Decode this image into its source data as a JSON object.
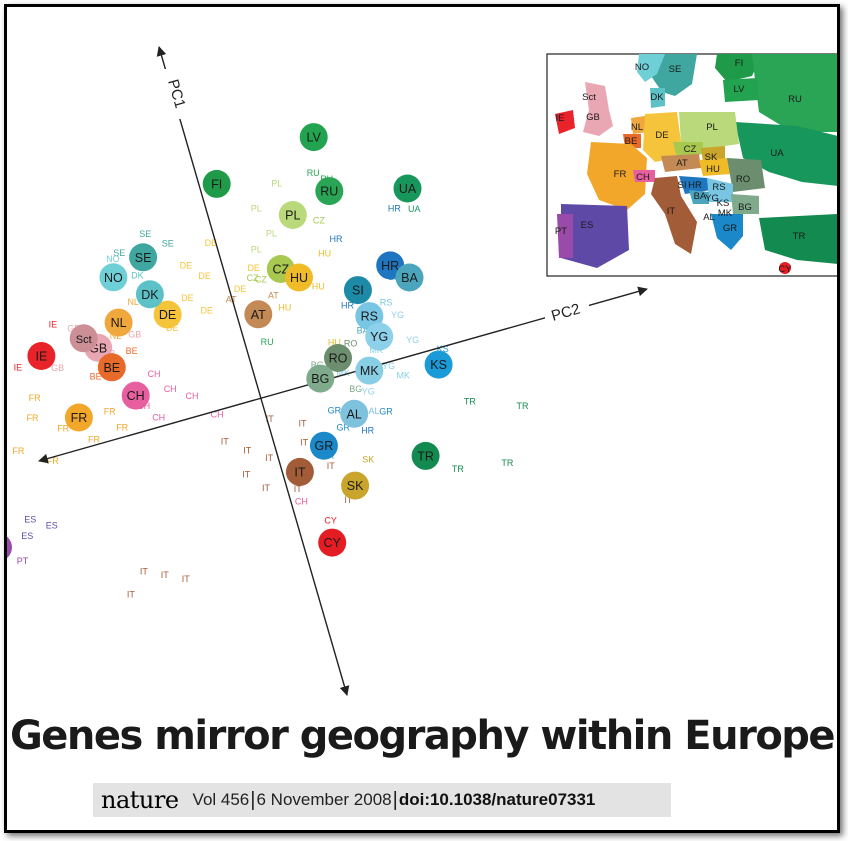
{
  "headline": "Genes mirror geography within Europe",
  "citation": {
    "journal": "nature",
    "volume_date": "Vol 456",
    "sep": "|",
    "date": "6 November 2008",
    "doi": "doi:10.1038/nature07331"
  },
  "colors": {
    "IE": "#e8232a",
    "GB": "#e8a7b2",
    "Sct": "#cc8f96",
    "NL": "#f0a73d",
    "DE": "#f5c43b",
    "DK": "#5dc2c8",
    "NO": "#6ecfd6",
    "SE": "#3fa7a0",
    "FI": "#1e9a49",
    "LV": "#22a34f",
    "RU": "#29a555",
    "UA": "#17975b",
    "PL": "#b9d97a",
    "CZ": "#a8c84f",
    "HU": "#efbb26",
    "AT": "#c48a55",
    "BE": "#e86a2a",
    "FR": "#f3a72a",
    "CH": "#e85fa0",
    "ES": "#5e4aa6",
    "PT": "#9a4aa8",
    "IT": "#a35c38",
    "SK": "#c9a52c",
    "SI": "#1d8ba8",
    "HR": "#1d76bf",
    "BA": "#4ba6bd",
    "RS": "#79c6e4",
    "YG": "#8dd0ea",
    "RO": "#6d8e6e",
    "BG": "#7faa8c",
    "MK": "#88cfe6",
    "KS": "#1b9ad8",
    "AL": "#7fc2dd",
    "GR": "#1a88c9",
    "TR": "#138a4f",
    "CY": "#e41d24"
  },
  "chart_data": {
    "type": "scatter",
    "xlabel": "PC2",
    "ylabel": "PC1",
    "country_means": [
      {
        "label": "IE",
        "x": -0.55,
        "y": 0.42
      },
      {
        "label": "GB",
        "x": -0.4,
        "y": 0.38
      },
      {
        "label": "Sct",
        "x": -0.43,
        "y": 0.45
      },
      {
        "label": "NL",
        "x": -0.33,
        "y": 0.48
      },
      {
        "label": "DE",
        "x": -0.2,
        "y": 0.45
      },
      {
        "label": "DK",
        "x": -0.23,
        "y": 0.58
      },
      {
        "label": "NO",
        "x": -0.31,
        "y": 0.72
      },
      {
        "label": "SE",
        "x": -0.22,
        "y": 0.78
      },
      {
        "label": "FI",
        "x": 0.02,
        "y": 1.05
      },
      {
        "label": "LV",
        "x": 0.3,
        "y": 1.15
      },
      {
        "label": "RU",
        "x": 0.3,
        "y": 0.85
      },
      {
        "label": "UA",
        "x": 0.5,
        "y": 0.75
      },
      {
        "label": "PL",
        "x": 0.19,
        "y": 0.78
      },
      {
        "label": "CZ",
        "x": 0.12,
        "y": 0.52
      },
      {
        "label": "HU",
        "x": 0.16,
        "y": 0.45
      },
      {
        "label": "AT",
        "x": 0.03,
        "y": 0.32
      },
      {
        "label": "BE",
        "x": -0.38,
        "y": 0.26
      },
      {
        "label": "FR",
        "x": -0.5,
        "y": 0.05
      },
      {
        "label": "CH",
        "x": -0.34,
        "y": 0.08
      },
      {
        "label": "ES",
        "x": -0.85,
        "y": -0.4
      },
      {
        "label": "PT",
        "x": -0.8,
        "y": -0.5
      },
      {
        "label": "IT",
        "x": 0.02,
        "y": -0.55
      },
      {
        "label": "SK",
        "x": 0.15,
        "y": -0.7
      },
      {
        "label": "SI",
        "x": 0.3,
        "y": 0.3
      },
      {
        "label": "HR",
        "x": 0.4,
        "y": 0.38
      },
      {
        "label": "BA",
        "x": 0.44,
        "y": 0.29
      },
      {
        "label": "RS",
        "x": 0.31,
        "y": 0.15
      },
      {
        "label": "YG",
        "x": 0.32,
        "y": 0.03
      },
      {
        "label": "RO",
        "x": 0.2,
        "y": -0.02
      },
      {
        "label": "BG",
        "x": 0.14,
        "y": -0.1
      },
      {
        "label": "MK",
        "x": 0.27,
        "y": -0.13
      },
      {
        "label": "KS",
        "x": 0.45,
        "y": -0.2
      },
      {
        "label": "AL",
        "x": 0.2,
        "y": -0.33
      },
      {
        "label": "GR",
        "x": 0.1,
        "y": -0.45
      },
      {
        "label": "TR",
        "x": 0.35,
        "y": -0.65
      },
      {
        "label": "CY",
        "x": 0.05,
        "y": -0.96
      }
    ],
    "individual_labels": [
      {
        "label": "IE",
        "x": -0.75,
        "y": 0.48
      },
      {
        "label": "IE",
        "x": -0.65,
        "y": 0.52
      },
      {
        "label": "IE",
        "x": -0.62,
        "y": 0.38
      },
      {
        "label": "IE",
        "x": -0.5,
        "y": 0.55
      },
      {
        "label": "GB",
        "x": -0.45,
        "y": 0.5
      },
      {
        "label": "GB",
        "x": -0.38,
        "y": 0.32
      },
      {
        "label": "GB",
        "x": -0.52,
        "y": 0.32
      },
      {
        "label": "GB",
        "x": -0.3,
        "y": 0.38
      },
      {
        "label": "NL",
        "x": -0.28,
        "y": 0.55
      },
      {
        "label": "NL",
        "x": -0.35,
        "y": 0.4
      },
      {
        "label": "DE",
        "x": -0.12,
        "y": 0.66
      },
      {
        "label": "DE",
        "x": -0.08,
        "y": 0.58
      },
      {
        "label": "DE",
        "x": -0.14,
        "y": 0.49
      },
      {
        "label": "DE",
        "x": -0.04,
        "y": 0.74
      },
      {
        "label": "DE",
        "x": 0.05,
        "y": 0.55
      },
      {
        "label": "DE",
        "x": -0.1,
        "y": 0.4
      },
      {
        "label": "DE",
        "x": -0.2,
        "y": 0.36
      },
      {
        "label": "DE",
        "x": 0.0,
        "y": 0.46
      },
      {
        "label": "SE",
        "x": -0.2,
        "y": 0.88
      },
      {
        "label": "SE",
        "x": -0.28,
        "y": 0.82
      },
      {
        "label": "SE",
        "x": -0.15,
        "y": 0.8
      },
      {
        "label": "NO",
        "x": -0.3,
        "y": 0.8
      },
      {
        "label": "DK",
        "x": -0.25,
        "y": 0.68
      },
      {
        "label": "PL",
        "x": 0.1,
        "y": 0.85
      },
      {
        "label": "PL",
        "x": 0.12,
        "y": 0.7
      },
      {
        "label": "PL",
        "x": 0.17,
        "y": 0.95
      },
      {
        "label": "PL",
        "x": 0.07,
        "y": 0.64
      },
      {
        "label": "RU",
        "x": 0.27,
        "y": 0.95
      },
      {
        "label": "RU",
        "x": 0.3,
        "y": 0.9
      },
      {
        "label": "CZ",
        "x": 0.06,
        "y": 0.48
      },
      {
        "label": "CZ",
        "x": 0.04,
        "y": 0.5
      },
      {
        "label": "CZ",
        "x": 0.25,
        "y": 0.7
      },
      {
        "label": "AT",
        "x": 0.1,
        "y": 0.5
      },
      {
        "label": "AT",
        "x": -0.03,
        "y": 0.42
      },
      {
        "label": "AT",
        "x": 0.08,
        "y": 0.38
      },
      {
        "label": "HU",
        "x": 0.24,
        "y": 0.52
      },
      {
        "label": "HU",
        "x": 0.2,
        "y": 0.36
      },
      {
        "label": "HU",
        "x": 0.1,
        "y": 0.3
      },
      {
        "label": "HU",
        "x": 0.2,
        "y": 0.05
      },
      {
        "label": "HR",
        "x": 0.28,
        "y": 0.58
      },
      {
        "label": "HR",
        "x": 0.45,
        "y": 0.65
      },
      {
        "label": "HR",
        "x": 0.26,
        "y": 0.22
      },
      {
        "label": "HR",
        "x": 0.22,
        "y": -0.45
      },
      {
        "label": "BA",
        "x": 0.4,
        "y": 0.3
      },
      {
        "label": "BA",
        "x": 0.28,
        "y": 0.07
      },
      {
        "label": "BE",
        "x": -0.32,
        "y": 0.3
      },
      {
        "label": "BE",
        "x": -0.43,
        "y": 0.22
      },
      {
        "label": "FR",
        "x": -0.6,
        "y": 0.2
      },
      {
        "label": "FR",
        "x": -0.62,
        "y": 0.1
      },
      {
        "label": "FR",
        "x": -0.55,
        "y": 0.0
      },
      {
        "label": "FR",
        "x": -0.68,
        "y": -0.05
      },
      {
        "label": "FR",
        "x": -0.48,
        "y": -0.1
      },
      {
        "label": "FR",
        "x": -0.6,
        "y": -0.15
      },
      {
        "label": "FR",
        "x": -0.42,
        "y": 0.02
      },
      {
        "label": "FR",
        "x": -0.4,
        "y": -0.08
      },
      {
        "label": "CH",
        "x": -0.28,
        "y": 0.15
      },
      {
        "label": "CH",
        "x": -0.25,
        "y": 0.05
      },
      {
        "label": "CH",
        "x": -0.2,
        "y": -0.02
      },
      {
        "label": "CH",
        "x": -0.33,
        "y": 0.0
      },
      {
        "label": "CH",
        "x": -0.3,
        "y": -0.08
      },
      {
        "label": "CH",
        "x": -0.15,
        "y": -0.15
      },
      {
        "label": "CH",
        "x": 0.0,
        "y": -0.72
      },
      {
        "label": "ES",
        "x": -0.95,
        "y": -0.32
      },
      {
        "label": "ES",
        "x": -0.9,
        "y": -0.45
      },
      {
        "label": "ES",
        "x": -0.78,
        "y": -0.38
      },
      {
        "label": "ES",
        "x": -0.72,
        "y": -0.5
      },
      {
        "label": "ES",
        "x": -0.98,
        "y": -0.5
      },
      {
        "label": "ES",
        "x": -0.82,
        "y": -0.55
      },
      {
        "label": "ES",
        "x": -0.7,
        "y": -0.42
      },
      {
        "label": "ES",
        "x": -0.65,
        "y": -0.48
      },
      {
        "label": "ES",
        "x": -0.88,
        "y": -0.6
      },
      {
        "label": "PT",
        "x": -0.92,
        "y": -0.58
      },
      {
        "label": "PT",
        "x": -0.85,
        "y": -0.65
      },
      {
        "label": "PT",
        "x": -0.75,
        "y": -0.62
      },
      {
        "label": "IT",
        "x": -0.15,
        "y": -0.3
      },
      {
        "label": "IT",
        "x": -0.1,
        "y": -0.38
      },
      {
        "label": "IT",
        "x": -0.05,
        "y": -0.45
      },
      {
        "label": "IT",
        "x": 0.05,
        "y": -0.42
      },
      {
        "label": "IT",
        "x": 0.1,
        "y": -0.58
      },
      {
        "label": "IT",
        "x": 0.0,
        "y": -0.65
      },
      {
        "label": "IT",
        "x": -0.08,
        "y": -0.6
      },
      {
        "label": "IT",
        "x": 0.12,
        "y": -0.78
      },
      {
        "label": "IT",
        "x": -0.12,
        "y": -0.5
      },
      {
        "label": "IT",
        "x": -0.45,
        "y": -0.85
      },
      {
        "label": "IT",
        "x": -0.4,
        "y": -0.9
      },
      {
        "label": "IT",
        "x": -0.5,
        "y": -0.95
      },
      {
        "label": "IT",
        "x": -0.35,
        "y": -0.95
      },
      {
        "label": "IT",
        "x": 0.06,
        "y": -0.32
      },
      {
        "label": "IT",
        "x": -0.02,
        "y": -0.25
      },
      {
        "label": "SK",
        "x": 0.2,
        "y": -0.6
      },
      {
        "label": "RS",
        "x": 0.36,
        "y": 0.18
      },
      {
        "label": "RO",
        "x": 0.24,
        "y": 0.02
      },
      {
        "label": "RO",
        "x": 0.14,
        "y": -0.15
      },
      {
        "label": "YG",
        "x": 0.38,
        "y": 0.1
      },
      {
        "label": "YG",
        "x": 0.4,
        "y": -0.05
      },
      {
        "label": "YG",
        "x": 0.32,
        "y": -0.15
      },
      {
        "label": "YG",
        "x": 0.25,
        "y": -0.25
      },
      {
        "label": "MK",
        "x": 0.3,
        "y": -0.05
      },
      {
        "label": "MK",
        "x": 0.2,
        "y": -0.12
      },
      {
        "label": "MK",
        "x": 0.35,
        "y": -0.22
      },
      {
        "label": "BG",
        "x": 0.14,
        "y": -0.04
      },
      {
        "label": "BG",
        "x": 0.22,
        "y": -0.22
      },
      {
        "label": "AL",
        "x": 0.25,
        "y": -0.36
      },
      {
        "label": "GR",
        "x": 0.16,
        "y": -0.4
      },
      {
        "label": "GR",
        "x": 0.28,
        "y": -0.38
      },
      {
        "label": "GR",
        "x": 0.1,
        "y": -0.52
      },
      {
        "label": "GR",
        "x": 0.15,
        "y": -0.3
      },
      {
        "label": "TR",
        "x": 0.5,
        "y": -0.45
      },
      {
        "label": "TR",
        "x": 0.63,
        "y": -0.55
      },
      {
        "label": "TR",
        "x": 0.42,
        "y": -0.78
      },
      {
        "label": "TR",
        "x": 0.55,
        "y": -0.82
      },
      {
        "label": "CY",
        "x": 0.06,
        "y": -0.86
      },
      {
        "label": "KS",
        "x": 0.47,
        "y": -0.14
      },
      {
        "label": "UA",
        "x": 0.5,
        "y": 0.62
      },
      {
        "label": "RU",
        "x": 0.03,
        "y": 0.15
      }
    ]
  },
  "inset_map": {
    "labels": [
      {
        "label": "NO",
        "x": 95,
        "y": 12
      },
      {
        "label": "SE",
        "x": 128,
        "y": 14
      },
      {
        "label": "FI",
        "x": 192,
        "y": 8
      },
      {
        "label": "LV",
        "x": 192,
        "y": 34
      },
      {
        "label": "RU",
        "x": 248,
        "y": 44
      },
      {
        "label": "DK",
        "x": 110,
        "y": 42
      },
      {
        "label": "Sct",
        "x": 42,
        "y": 42
      },
      {
        "label": "GB",
        "x": 46,
        "y": 62
      },
      {
        "label": "IE",
        "x": 13,
        "y": 63
      },
      {
        "label": "NL",
        "x": 90,
        "y": 72
      },
      {
        "label": "BE",
        "x": 84,
        "y": 86
      },
      {
        "label": "DE",
        "x": 115,
        "y": 80
      },
      {
        "label": "PL",
        "x": 165,
        "y": 72
      },
      {
        "label": "UA",
        "x": 230,
        "y": 98
      },
      {
        "label": "CZ",
        "x": 143,
        "y": 94
      },
      {
        "label": "SK",
        "x": 164,
        "y": 102
      },
      {
        "label": "AT",
        "x": 135,
        "y": 108
      },
      {
        "label": "HU",
        "x": 166,
        "y": 114
      },
      {
        "label": "RO",
        "x": 196,
        "y": 124
      },
      {
        "label": "FR",
        "x": 73,
        "y": 119
      },
      {
        "label": "CH",
        "x": 96,
        "y": 122
      },
      {
        "label": "SI",
        "x": 135,
        "y": 130
      },
      {
        "label": "HR",
        "x": 148,
        "y": 130
      },
      {
        "label": "RS",
        "x": 172,
        "y": 132
      },
      {
        "label": "BA",
        "x": 153,
        "y": 141
      },
      {
        "label": "YG",
        "x": 165,
        "y": 143
      },
      {
        "label": "KS",
        "x": 176,
        "y": 148
      },
      {
        "label": "BG",
        "x": 198,
        "y": 152
      },
      {
        "label": "IT",
        "x": 124,
        "y": 156
      },
      {
        "label": "MK",
        "x": 178,
        "y": 158
      },
      {
        "label": "AL",
        "x": 162,
        "y": 162
      },
      {
        "label": "GR",
        "x": 183,
        "y": 173
      },
      {
        "label": "ES",
        "x": 40,
        "y": 170
      },
      {
        "label": "PT",
        "x": 14,
        "y": 176
      },
      {
        "label": "TR",
        "x": 252,
        "y": 181
      },
      {
        "label": "CY",
        "x": 238,
        "y": 214
      }
    ]
  }
}
